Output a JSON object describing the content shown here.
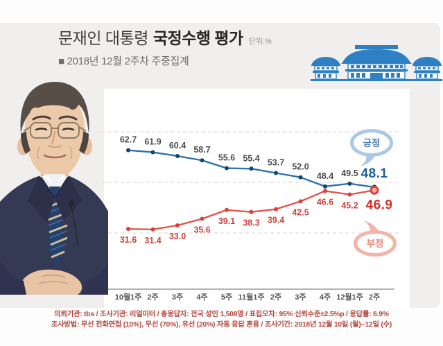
{
  "header": {
    "title_regular": "문재인 대통령",
    "title_bold": "국정수행 평가",
    "unit": "단위:%",
    "subtitle": "■ 2018년 12월 2주차 주중집계"
  },
  "images": {
    "portrait": "moon-jae-in-portrait-photo",
    "building": "cheongwadae-blue-house-illustration"
  },
  "chart_data": {
    "type": "line",
    "title": "문재인 대통령 국정수행 평가",
    "unit": "%",
    "categories": [
      "10월1주",
      "2주",
      "3주",
      "4주",
      "5주",
      "11월1주",
      "2주",
      "3주",
      "4주",
      "12월1주",
      "2주"
    ],
    "series": [
      {
        "name": "긍정",
        "line_color": "#2e72ac",
        "dot_color": "#17456e",
        "label_color": "#4c4c4c",
        "final_color": "#1d5fa0",
        "values": [
          62.7,
          61.9,
          60.4,
          58.7,
          55.6,
          55.4,
          53.7,
          52.0,
          48.4,
          49.5,
          48.1
        ]
      },
      {
        "name": "부정",
        "line_color": "#e2574e",
        "dot_color": "#d7423a",
        "label_color": "#c8443e",
        "final_color": "#d62e26",
        "values": [
          31.6,
          31.4,
          33.0,
          35.6,
          39.1,
          38.3,
          39.4,
          42.5,
          46.6,
          45.2,
          46.9
        ]
      }
    ],
    "ylim": [
      25,
      75
    ],
    "gridline_values": [
      70,
      50,
      30
    ],
    "grid_style": "dashed-horizontal",
    "legend": {
      "positive_label": "긍정",
      "negative_label": "부정",
      "positive_border": "#a9c9e6",
      "positive_text": "#4a80b8",
      "negative_border": "#f3b4a8",
      "negative_text": "#e8897b"
    }
  },
  "footer": {
    "line1": "의뢰기관: tbs / 조사기관: 리얼미터 / 총응답자: 전국 성인 1,508명 / 표집오차: 95% 신뢰수준±2.5%p / 응답률: 6.9%",
    "line2": "조사방법: 무선 전화면접 (10%), 무선 (70%), 유선 (20%) 자동 응답 혼용 / 조사기간: 2018년 12월 10일 (월)~12일 (수)"
  }
}
